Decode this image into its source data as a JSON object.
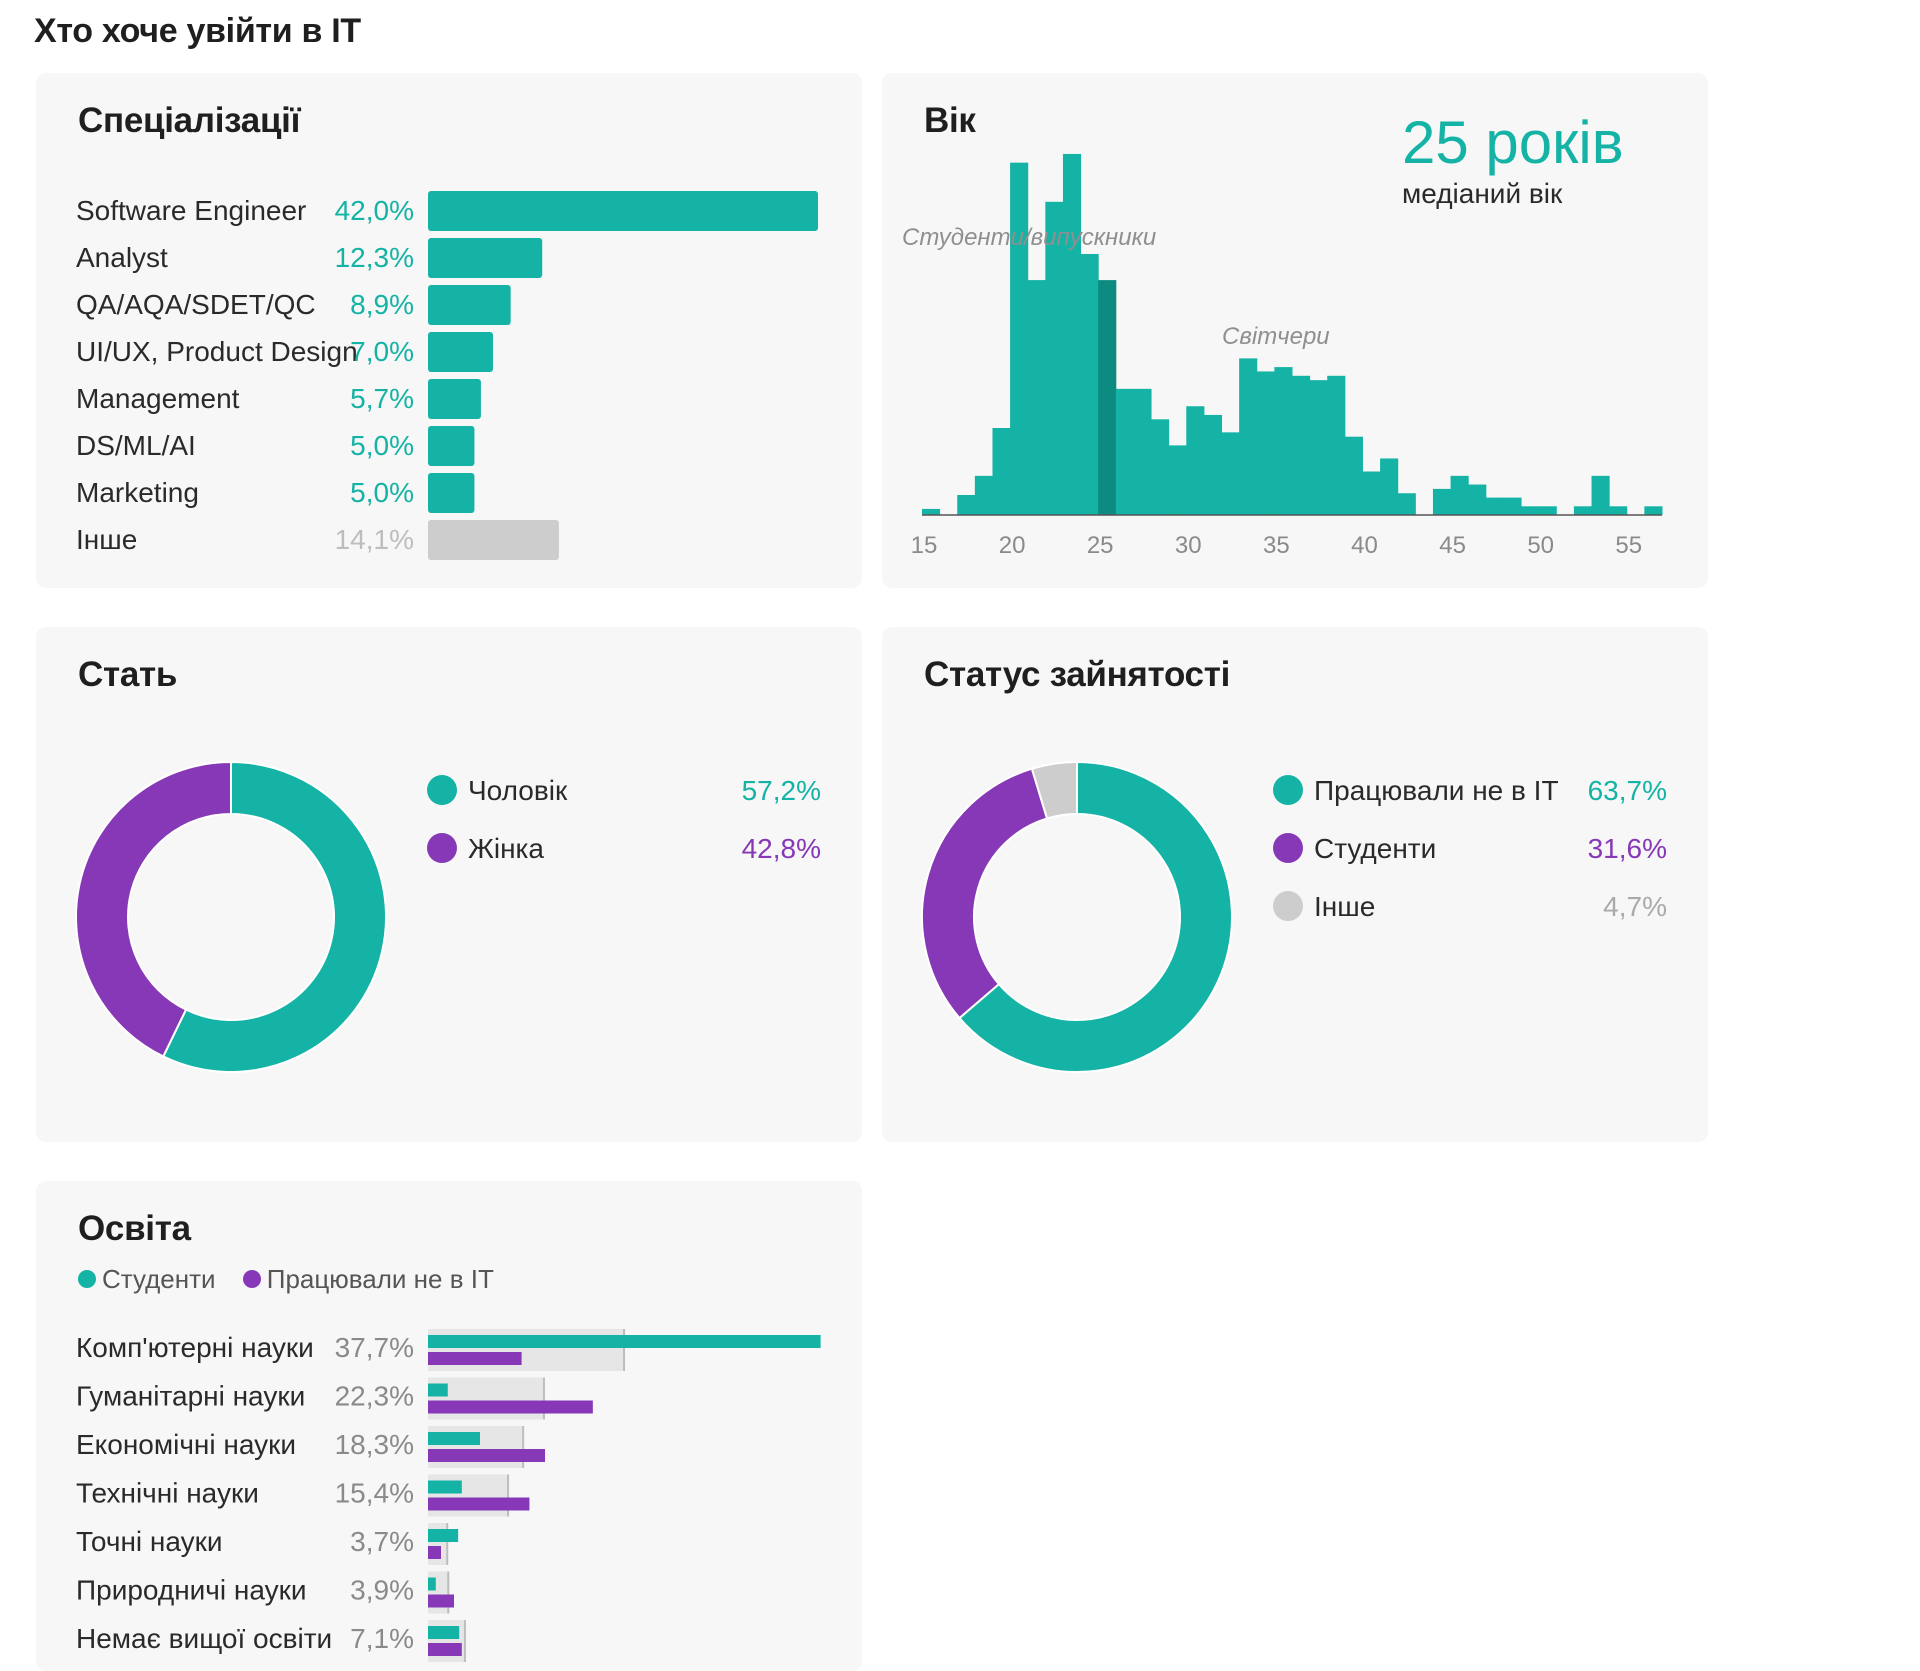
{
  "page_title": "Хто хоче увійти в ІТ",
  "colors": {
    "teal": "#14b3a5",
    "purple": "#8638b6",
    "gray": "#cdcdcd",
    "dark_teal": "#0e8b80",
    "bg_card": "#f7f7f7"
  },
  "chart_data": [
    {
      "id": "specializations",
      "type": "bar",
      "title": "Спеціалізації",
      "categories": [
        "Software Engineer",
        "Analyst",
        "QA/AQA/SDET/QC",
        "UI/UX, Product Design",
        "Management",
        "DS/ML/AI",
        "Marketing",
        "Інше"
      ],
      "values": [
        42.0,
        12.3,
        8.9,
        7.0,
        5.7,
        5.0,
        5.0,
        14.1
      ],
      "value_labels": [
        "42,0%",
        "12,3%",
        "8,9%",
        "7,0%",
        "5,7%",
        "5,0%",
        "5,0%",
        "14,1%"
      ],
      "unit": "%"
    },
    {
      "id": "age",
      "type": "bar",
      "title": "Вік",
      "x": [
        15,
        16,
        17,
        18,
        19,
        20,
        21,
        22,
        23,
        24,
        25,
        26,
        27,
        28,
        29,
        30,
        31,
        32,
        33,
        34,
        35,
        36,
        37,
        38,
        39,
        40,
        41,
        42,
        43,
        44,
        45,
        46,
        47,
        48,
        49,
        50,
        51,
        52,
        53,
        54,
        55,
        56
      ],
      "values": [
        0.7,
        0,
        2.3,
        4.5,
        10.0,
        40.5,
        27.0,
        36.0,
        41.5,
        30.0,
        27.0,
        14.5,
        14.5,
        11.0,
        8.0,
        12.5,
        11.5,
        9.5,
        18.0,
        16.5,
        17.0,
        16.0,
        15.5,
        16.0,
        9.0,
        5.0,
        6.5,
        2.5,
        0,
        3.0,
        4.5,
        3.5,
        2.0,
        2.0,
        1.0,
        1.0,
        0,
        1.0,
        4.5,
        1.0,
        0,
        1.0
      ],
      "highlight_x": 25,
      "x_ticks": [
        "15",
        "20",
        "25",
        "30",
        "35",
        "40",
        "45",
        "50",
        "55"
      ],
      "xlim": [
        15,
        57
      ],
      "annotations": [
        "Студенти/випускники",
        "Світчери"
      ],
      "median_value": "25 років",
      "median_label": "медіаний вік"
    },
    {
      "id": "gender",
      "type": "pie",
      "title": "Стать",
      "labels": [
        "Чоловік",
        "Жінка"
      ],
      "values": [
        57.2,
        42.8
      ],
      "value_labels": [
        "57,2%",
        "42,8%"
      ]
    },
    {
      "id": "employment",
      "type": "pie",
      "title": "Статус зайнятості",
      "labels": [
        "Працювали не в ІТ",
        "Студенти",
        "Інше"
      ],
      "values": [
        63.7,
        31.6,
        4.7
      ],
      "value_labels": [
        "63,7%",
        "31,6%",
        "4,7%"
      ]
    },
    {
      "id": "education",
      "type": "bar",
      "title": "Освіта",
      "legend": [
        "Студенти",
        "Працювали не в ІТ"
      ],
      "categories": [
        "Комп'ютерні науки",
        "Гуманітарні науки",
        "Економічні науки",
        "Технічні науки",
        "Точні науки",
        "Природничі науки",
        "Немає вищої освіти"
      ],
      "values": [
        37.7,
        22.3,
        18.3,
        15.4,
        3.7,
        3.9,
        7.1
      ],
      "value_labels": [
        "37,7%",
        "22,3%",
        "18,3%",
        "15,4%",
        "3,7%",
        "3,9%",
        "7,1%"
      ],
      "series": [
        {
          "name": "Студенти",
          "values": [
            75.5,
            3.8,
            10.0,
            6.5,
            5.8,
            1.5,
            6.0
          ]
        },
        {
          "name": "Працювали не в ІТ",
          "values": [
            18.0,
            31.7,
            22.5,
            19.5,
            2.5,
            5.0,
            6.5
          ]
        }
      ]
    }
  ]
}
